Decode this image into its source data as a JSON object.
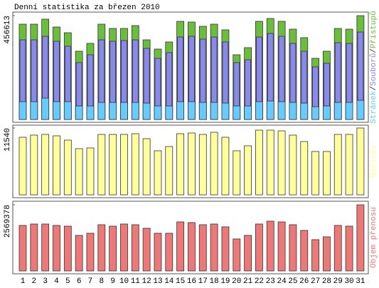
{
  "title": "Denní statistika za březen 2010",
  "legend_separator": "/",
  "chart_data": [
    {
      "type": "bar",
      "ylim": [
        0,
        456613
      ],
      "yticks": [
        456613
      ],
      "series": [
        {
          "name": "Stránek",
          "color": "#66ccff",
          "values": [
            78200,
            78200,
            93800,
            78200,
            78200,
            59400,
            59400,
            75000,
            75000,
            75000,
            75000,
            71900,
            59400,
            59400,
            78200,
            78200,
            75000,
            75000,
            71900,
            59400,
            59400,
            78200,
            81300,
            78200,
            75000,
            71900,
            56300,
            59400,
            75000,
            75000,
            84400
          ]
        },
        {
          "name": "Souborů",
          "color": "#8888ee",
          "values": [
            350300,
            350300,
            365900,
            344000,
            322100,
            250200,
            284600,
            350300,
            344000,
            347200,
            350300,
            312800,
            269000,
            294000,
            362800,
            365900,
            353400,
            362800,
            340900,
            250200,
            262700,
            362800,
            378400,
            365900,
            334600,
            300200,
            231400,
            247100,
            337800,
            334600,
            384700
          ]
        },
        {
          "name": "Přístupů",
          "color": "#6abf3a",
          "values": [
            419100,
            419100,
            441000,
            406600,
            381500,
            300200,
            334600,
            419100,
            400300,
            400300,
            412800,
            350300,
            309600,
            340900,
            431600,
            428500,
            409700,
            419100,
            394100,
            284600,
            315900,
            431600,
            444100,
            431600,
            397200,
            359700,
            269000,
            300200,
            400300,
            397200,
            456613
          ]
        }
      ]
    },
    {
      "type": "bar",
      "ylim": [
        0,
        11540
      ],
      "yticks": [
        11540
      ],
      "series": [
        {
          "name": "Návštěv",
          "color": "#ffff99",
          "values": [
            9945,
            10313,
            10435,
            10190,
            9453,
            7980,
            8103,
            10435,
            10435,
            10435,
            10558,
            9699,
            7612,
            8348,
            10558,
            10681,
            10435,
            10804,
            9945,
            7612,
            8471,
            11172,
            11172,
            11049,
            10313,
            9208,
            7489,
            7489,
            10435,
            10435,
            11540
          ]
        }
      ]
    },
    {
      "type": "bar",
      "ylim": [
        0,
        2569378
      ],
      "yticks": [
        2569378
      ],
      "series": [
        {
          "name": "Objem přenosu",
          "color": "#ee7777",
          "values": [
            1768200,
            1823400,
            1823400,
            1768200,
            1740600,
            1381400,
            1464300,
            1795800,
            1740600,
            1823400,
            1795800,
            1657700,
            1464300,
            1464300,
            1906300,
            1878700,
            1795800,
            1823400,
            1712900,
            1243300,
            1381400,
            1823400,
            1934000,
            1906300,
            1795800,
            1574800,
            1215600,
            1326100,
            1768200,
            1740600,
            2569378
          ]
        }
      ],
      "categories": [
        "1",
        "2",
        "3",
        "4",
        "5",
        "6",
        "7",
        "8",
        "9",
        "10",
        "11",
        "12",
        "13",
        "14",
        "15",
        "16",
        "17",
        "18",
        "19",
        "20",
        "21",
        "22",
        "23",
        "24",
        "25",
        "26",
        "27",
        "28",
        "29",
        "30",
        "31"
      ],
      "category_colors": [
        "#000",
        "#000",
        "#000",
        "#000",
        "#000",
        "#66aa22",
        "#66aa22",
        "#000",
        "#000",
        "#000",
        "#000",
        "#000",
        "#66aa22",
        "#66aa22",
        "#000",
        "#000",
        "#000",
        "#000",
        "#000",
        "#66aa22",
        "#66aa22",
        "#000",
        "#000",
        "#000",
        "#000",
        "#000",
        "#66aa22",
        "#66aa22",
        "#000",
        "#000",
        "#000"
      ]
    }
  ]
}
